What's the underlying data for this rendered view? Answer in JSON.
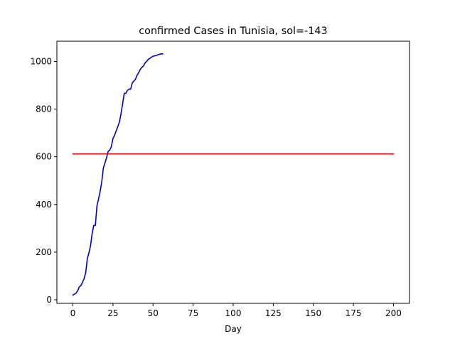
{
  "chart_data": {
    "type": "line",
    "title": "confirmed Cases in Tunisia, sol=-143",
    "xlabel": "Day",
    "ylabel": "",
    "xlim": [
      -10,
      210
    ],
    "ylim": [
      -15,
      1085
    ],
    "xticks": [
      0,
      25,
      50,
      75,
      100,
      125,
      150,
      175,
      200
    ],
    "yticks": [
      0,
      200,
      400,
      600,
      800,
      1000
    ],
    "grid": false,
    "series": [
      {
        "color": "#0000cc",
        "x": [
          0,
          1,
          2,
          3,
          4,
          5,
          6,
          7,
          8,
          9,
          10,
          11,
          12,
          13,
          14,
          15,
          16,
          17,
          18,
          19,
          20,
          21,
          22,
          23,
          24,
          25,
          26,
          27,
          28,
          29,
          30,
          31,
          32,
          33,
          34,
          35,
          36,
          37,
          38,
          39,
          40,
          41,
          42,
          43,
          44,
          45,
          46,
          47,
          48,
          49,
          50,
          51,
          52,
          53,
          54,
          55,
          56
        ],
        "y": [
          20,
          24,
          28,
          39,
          54,
          60,
          73,
          89,
          114,
          173,
          197,
          227,
          278,
          312,
          312,
          394,
          423,
          455,
          495,
          553,
          574,
          596,
          623,
          628,
          643,
          677,
          690,
          709,
          726,
          746,
          780,
          822,
          866,
          866,
          878,
          884,
          884,
          909,
          918,
          925,
          942,
          953,
          966,
          975,
          981,
          994,
          1000,
          1009,
          1013,
          1018,
          1022,
          1024,
          1025,
          1028,
          1030,
          1032,
          1032
        ]
      },
      {
        "color": "#dd0000",
        "x": [
          0,
          200
        ],
        "y": [
          612,
          612
        ]
      }
    ]
  }
}
